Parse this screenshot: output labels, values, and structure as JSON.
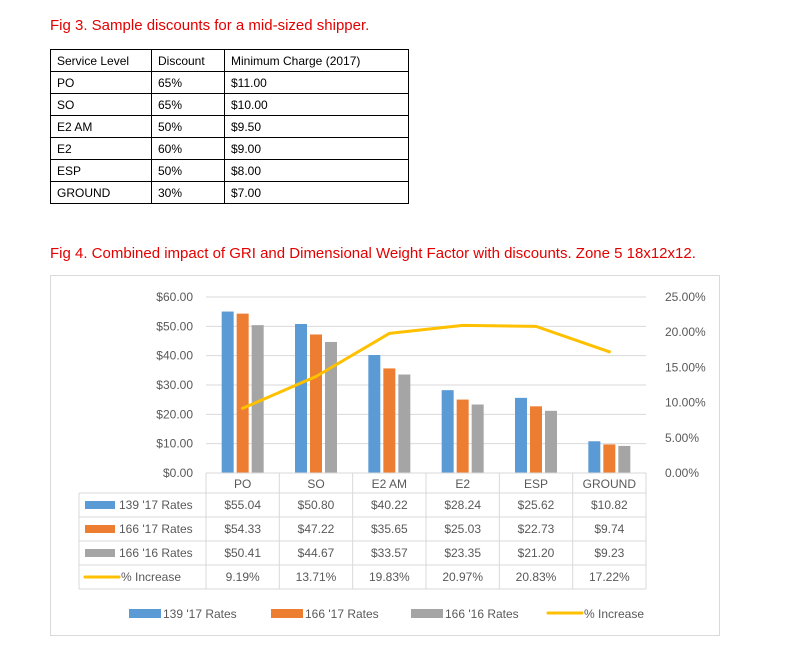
{
  "fig3": {
    "title": "Fig 3. Sample discounts for a mid-sized shipper.",
    "headers": [
      "Service Level",
      "Discount",
      "Minimum Charge (2017)"
    ],
    "rows": [
      [
        "PO",
        "65%",
        "$11.00"
      ],
      [
        "SO",
        "65%",
        "$10.00"
      ],
      [
        "E2 AM",
        "50%",
        "$9.50"
      ],
      [
        "E2",
        "60%",
        "$9.00"
      ],
      [
        "ESP",
        "50%",
        "$8.00"
      ],
      [
        "GROUND",
        "30%",
        "$7.00"
      ]
    ]
  },
  "fig4": {
    "title": "Fig 4. Combined impact of GRI and Dimensional Weight Factor with discounts. Zone 5 18x12x12."
  },
  "chart_data": {
    "type": "bar",
    "categories": [
      "PO",
      "SO",
      "E2 AM",
      "E2",
      "ESP",
      "GROUND"
    ],
    "series": [
      {
        "name": "139 '17 Rates",
        "type": "bar",
        "axis": "left",
        "color": "#5b9bd5",
        "values": [
          55.04,
          50.8,
          40.22,
          28.24,
          25.62,
          10.82
        ],
        "labels": [
          "$55.04",
          "$50.80",
          "$40.22",
          "$28.24",
          "$25.62",
          "$10.82"
        ]
      },
      {
        "name": "166 '17 Rates",
        "type": "bar",
        "axis": "left",
        "color": "#ed7d31",
        "values": [
          54.33,
          47.22,
          35.65,
          25.03,
          22.73,
          9.74
        ],
        "labels": [
          "$54.33",
          "$47.22",
          "$35.65",
          "$25.03",
          "$22.73",
          "$9.74"
        ]
      },
      {
        "name": "166 '16 Rates",
        "type": "bar",
        "axis": "left",
        "color": "#a5a5a5",
        "values": [
          50.41,
          44.67,
          33.57,
          23.35,
          21.2,
          9.23
        ],
        "labels": [
          "$50.41",
          "$44.67",
          "$33.57",
          "$23.35",
          "$21.20",
          "$9.23"
        ]
      },
      {
        "name": "% Increase",
        "type": "line",
        "axis": "right",
        "color": "#ffc000",
        "values": [
          9.19,
          13.71,
          19.83,
          20.97,
          20.83,
          17.22
        ],
        "labels": [
          "9.19%",
          "13.71%",
          "19.83%",
          "20.97%",
          "20.83%",
          "17.22%"
        ]
      }
    ],
    "ylim": [
      0,
      60
    ],
    "y_ticks": [
      "$0.00",
      "$10.00",
      "$20.00",
      "$30.00",
      "$40.00",
      "$50.00",
      "$60.00"
    ],
    "y2lim": [
      0,
      25
    ],
    "y2_ticks": [
      "0.00%",
      "5.00%",
      "10.00%",
      "15.00%",
      "20.00%",
      "25.00%"
    ],
    "grid": true,
    "legend": "bottom",
    "data_table": true
  }
}
